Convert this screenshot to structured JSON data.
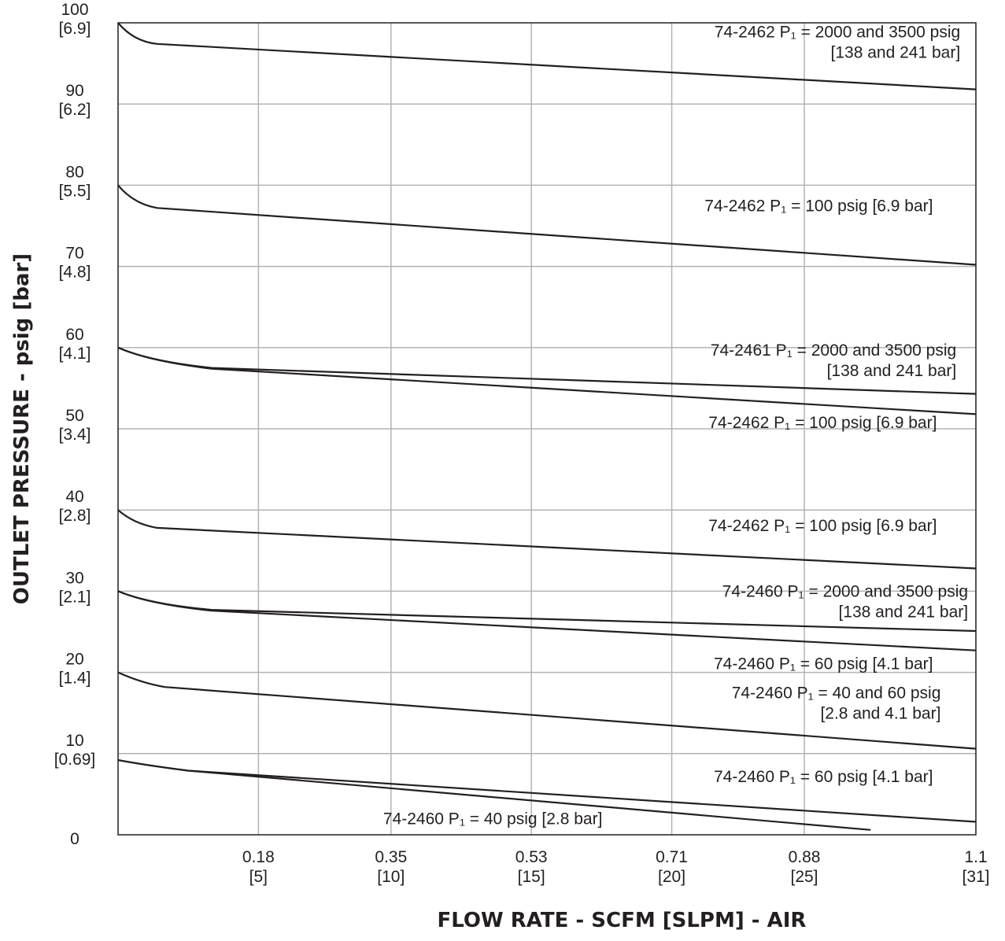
{
  "chart_data": {
    "type": "line",
    "title": "",
    "xlabel": "FLOW RATE - SCFM [SLPM] - AIR",
    "ylabel": "OUTLET PRESSURE - psig [bar]",
    "xlim": [
      0,
      1.1
    ],
    "ylim": [
      0,
      100
    ],
    "grid": true,
    "x_ticks": [
      {
        "value": 0.18,
        "primary": "0.18",
        "secondary": "[5]"
      },
      {
        "value": 0.35,
        "primary": "0.35",
        "secondary": "[10]"
      },
      {
        "value": 0.53,
        "primary": "0.53",
        "secondary": "[15]"
      },
      {
        "value": 0.71,
        "primary": "0.71",
        "secondary": "[20]"
      },
      {
        "value": 0.88,
        "primary": "0.88",
        "secondary": "[25]"
      },
      {
        "value": 1.1,
        "primary": "1.1",
        "secondary": "[31]"
      }
    ],
    "y_ticks": [
      {
        "value": 0,
        "primary": "0",
        "secondary": ""
      },
      {
        "value": 10,
        "primary": "10",
        "secondary": "[0.69]"
      },
      {
        "value": 20,
        "primary": "20",
        "secondary": "[1.4]"
      },
      {
        "value": 30,
        "primary": "30",
        "secondary": "[2.1]"
      },
      {
        "value": 40,
        "primary": "40",
        "secondary": "[2.8]"
      },
      {
        "value": 50,
        "primary": "50",
        "secondary": "[3.4]"
      },
      {
        "value": 60,
        "primary": "60",
        "secondary": "[4.1]"
      },
      {
        "value": 70,
        "primary": "70",
        "secondary": "[4.8]"
      },
      {
        "value": 80,
        "primary": "80",
        "secondary": "[5.5]"
      },
      {
        "value": 90,
        "primary": "90",
        "secondary": "[6.2]"
      },
      {
        "value": 100,
        "primary": "100",
        "secondary": "[6.9]"
      }
    ],
    "series": [
      {
        "x": [
          0,
          0.02,
          0.05,
          1.1
        ],
        "y": [
          100,
          97.7,
          97.4,
          91.8
        ]
      },
      {
        "x": [
          0,
          0.02,
          0.05,
          1.1
        ],
        "y": [
          80,
          77.7,
          77.2,
          70.2
        ]
      },
      {
        "x": [
          0,
          0.04,
          0.12,
          1.1
        ],
        "y": [
          60,
          58.3,
          57.5,
          54.3
        ]
      },
      {
        "x": [
          0,
          0.04,
          0.12,
          1.1
        ],
        "y": [
          60,
          58.3,
          57.4,
          51.8
        ]
      },
      {
        "x": [
          0,
          0.02,
          0.05,
          1.1
        ],
        "y": [
          40,
          38.3,
          37.8,
          32.8
        ]
      },
      {
        "x": [
          0,
          0.04,
          0.12,
          1.1
        ],
        "y": [
          30,
          28.4,
          27.7,
          25.1
        ]
      },
      {
        "x": [
          0,
          0.04,
          0.12,
          1.1
        ],
        "y": [
          30,
          28.4,
          27.6,
          22.7
        ]
      },
      {
        "x": [
          0,
          0.03,
          0.06,
          1.1
        ],
        "y": [
          20,
          18.7,
          18.2,
          10.6
        ]
      },
      {
        "x": [
          0,
          0.04,
          0.09,
          1.1
        ],
        "y": [
          9.2,
          8.5,
          7.9,
          1.6
        ]
      },
      {
        "x": [
          0,
          0.04,
          0.09,
          0.965
        ],
        "y": [
          9.2,
          8.5,
          7.9,
          0.6
        ]
      }
    ],
    "annotations": [
      {
        "lines": [
          "74-2462  P₁ = 2000 and 3500 psig",
          "[138 and 241 bar]"
        ],
        "x": 1.08,
        "y": 98.2
      },
      {
        "lines": [
          "74-2462  P₁ = 100 psig [6.9 bar]"
        ],
        "x": 1.045,
        "y": 76.8
      },
      {
        "lines": [
          "74-2461  P₁ = 2000 and 3500 psig",
          "[138 and 241 bar]"
        ],
        "x": 1.075,
        "y": 59.0
      },
      {
        "lines": [
          "74-2462  P₁ = 100 psig  [6.9 bar]"
        ],
        "x": 1.05,
        "y": 50.1
      },
      {
        "lines": [
          "74-2462  P₁ = 100 psig  [6.9 bar]"
        ],
        "x": 1.05,
        "y": 37.4
      },
      {
        "lines": [
          "74-2460  P₁ = 2000 and 3500 psig",
          "[138 and 241 bar]"
        ],
        "x": 1.09,
        "y": 29.3
      },
      {
        "lines": [
          "74-2460  P₁ = 60 psig [4.1 bar]"
        ],
        "x": 1.045,
        "y": 20.4
      },
      {
        "lines": [
          "74-2460  P₁ = 40 and 60 psig",
          "[2.8 and 4.1 bar]"
        ],
        "x": 1.055,
        "y": 16.8
      },
      {
        "lines": [
          "74-2460  P₁ = 60 psig [4.1 bar]"
        ],
        "x": 1.045,
        "y": 6.5
      },
      {
        "lines": [
          "74-2460  P₁ = 40 psig [2.8 bar]"
        ],
        "x": 0.34,
        "y": 1.3
      }
    ]
  }
}
